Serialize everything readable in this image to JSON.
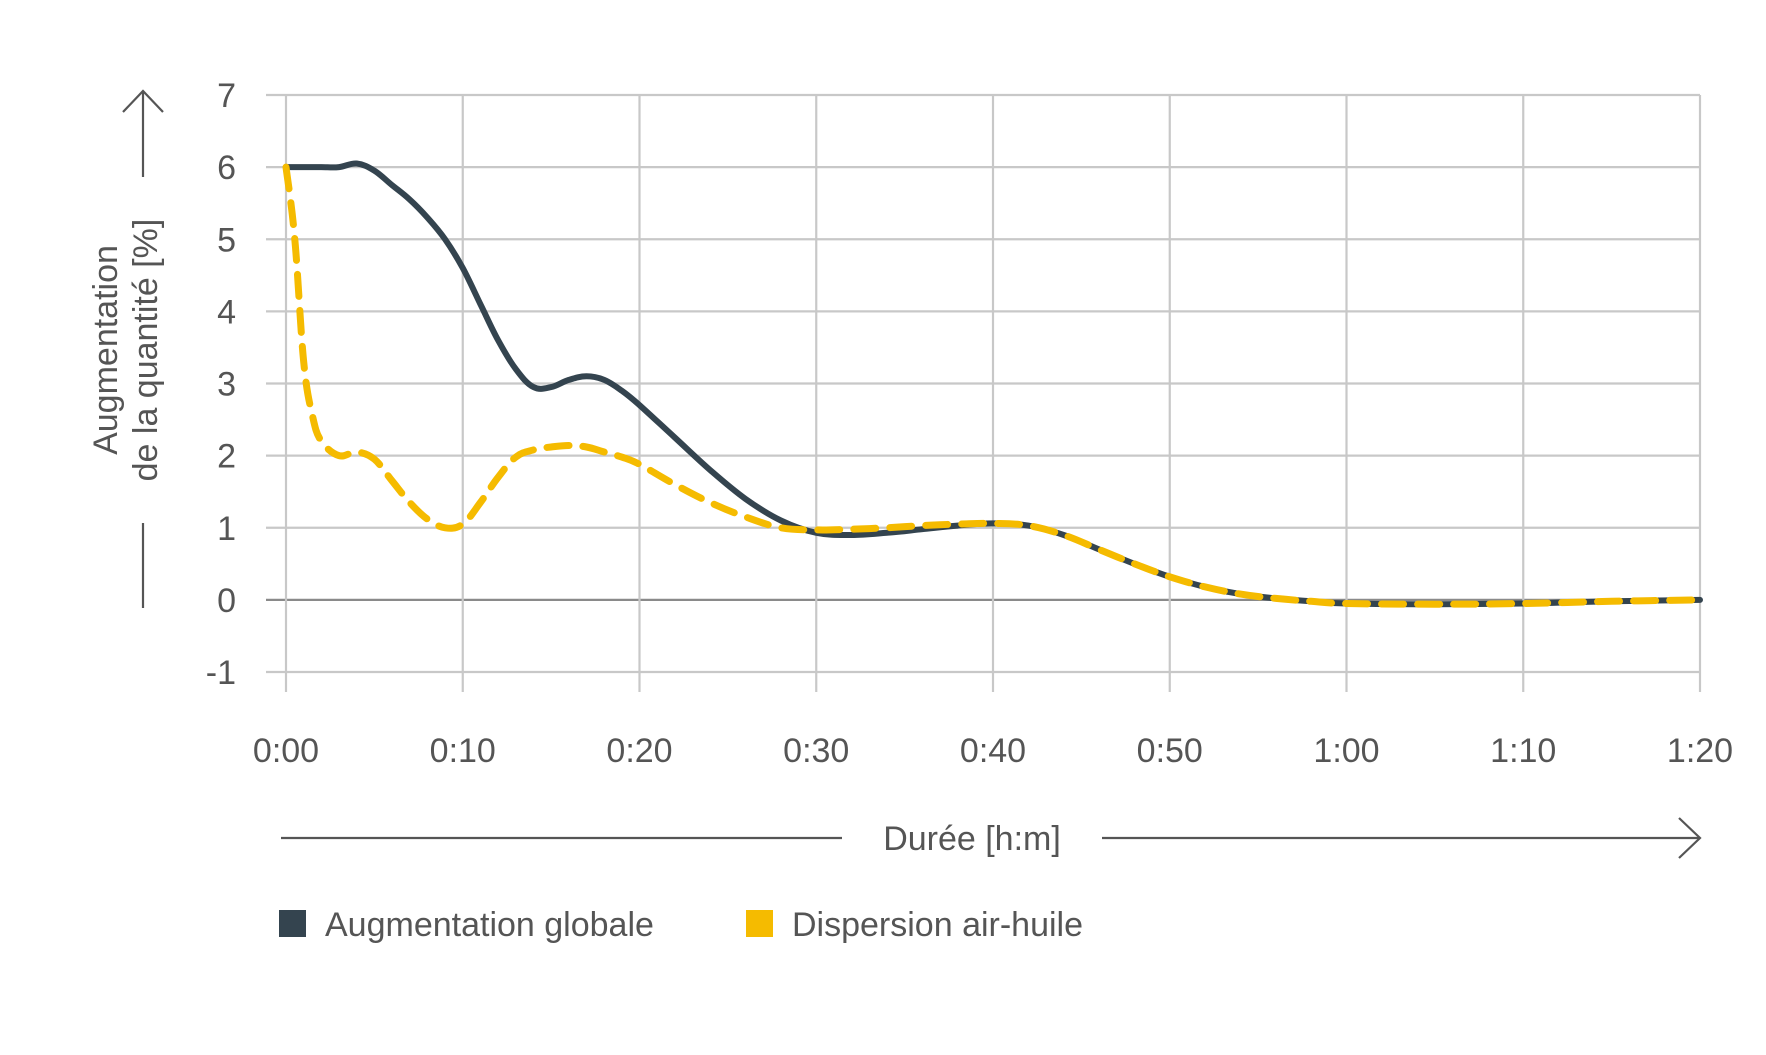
{
  "chart_data": {
    "type": "line",
    "xlabel": "Durée [h:m]",
    "ylabel_line1": "Augmentation",
    "ylabel_line2": "de la quantité [%]",
    "x_ticks": [
      "0:00",
      "0:10",
      "0:20",
      "0:30",
      "0:40",
      "0:50",
      "1:00",
      "1:10",
      "1:20"
    ],
    "x_range_minutes": [
      0,
      80
    ],
    "y_ticks": [
      "7",
      "6",
      "5",
      "4",
      "3",
      "2",
      "1",
      "0",
      "-1"
    ],
    "ylim": [
      -1,
      7
    ],
    "grid": true,
    "legend_position": "bottom-left",
    "series": [
      {
        "name": "Augmentation globale",
        "color": "#34444f",
        "style": "solid",
        "x": [
          "0:00",
          "0:01",
          "0:02",
          "0:03",
          "0:04",
          "0:05",
          "0:06",
          "0:07",
          "0:08",
          "0:09",
          "0:10",
          "0:11",
          "0:12",
          "0:13",
          "0:14",
          "0:15",
          "0:16",
          "0:17",
          "0:18",
          "0:19",
          "0:20",
          "0:22",
          "0:24",
          "0:26",
          "0:28",
          "0:30",
          "0:32",
          "0:34",
          "0:36",
          "0:38",
          "0:40",
          "0:42",
          "0:44",
          "0:46",
          "0:48",
          "0:50",
          "0:52",
          "0:54",
          "0:56",
          "0:58",
          "1:00",
          "1:05",
          "1:10",
          "1:15",
          "1:20"
        ],
        "y": [
          6.0,
          6.0,
          6.0,
          6.0,
          6.05,
          5.95,
          5.75,
          5.55,
          5.3,
          5.0,
          4.6,
          4.1,
          3.6,
          3.2,
          2.95,
          2.95,
          3.05,
          3.1,
          3.05,
          2.9,
          2.7,
          2.25,
          1.8,
          1.4,
          1.1,
          0.93,
          0.9,
          0.93,
          0.98,
          1.03,
          1.06,
          1.03,
          0.9,
          0.7,
          0.5,
          0.32,
          0.18,
          0.08,
          0.02,
          -0.02,
          -0.05,
          -0.06,
          -0.05,
          -0.02,
          0.0
        ]
      },
      {
        "name": "Dispersion air-huile",
        "color": "#f5bb00",
        "style": "dashed",
        "x": [
          "0:00",
          "0:00.5",
          "0:01",
          "0:01.5",
          "0:02",
          "0:03",
          "0:04",
          "0:05",
          "0:06",
          "0:07",
          "0:08",
          "0:09",
          "0:10",
          "0:11",
          "0:12",
          "0:13",
          "0:14",
          "0:15",
          "0:16",
          "0:17",
          "0:18",
          "0:19",
          "0:20",
          "0:22",
          "0:24",
          "0:26",
          "0:28",
          "0:30",
          "0:32",
          "0:34",
          "0:36",
          "0:38",
          "0:40",
          "0:42",
          "0:44",
          "0:46",
          "0:48",
          "0:50",
          "0:52",
          "0:54",
          "0:56",
          "0:58",
          "1:00",
          "1:05",
          "1:10",
          "1:15",
          "1:20"
        ],
        "y": [
          6.0,
          5.0,
          3.3,
          2.55,
          2.2,
          2.0,
          2.05,
          1.95,
          1.65,
          1.35,
          1.12,
          1.0,
          1.05,
          1.35,
          1.7,
          1.98,
          2.08,
          2.12,
          2.14,
          2.12,
          2.05,
          1.98,
          1.88,
          1.6,
          1.35,
          1.15,
          1.0,
          0.97,
          0.98,
          1.0,
          1.03,
          1.05,
          1.06,
          1.03,
          0.9,
          0.7,
          0.5,
          0.32,
          0.18,
          0.08,
          0.02,
          -0.02,
          -0.05,
          -0.06,
          -0.05,
          -0.02,
          0.0
        ]
      }
    ]
  }
}
